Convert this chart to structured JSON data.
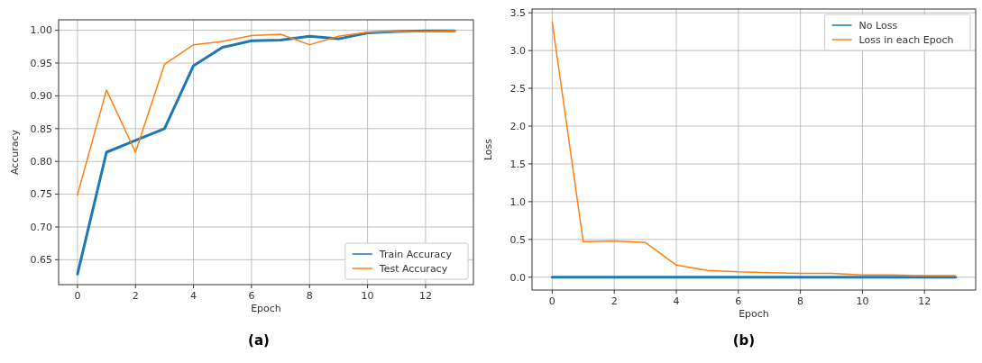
{
  "chart_data": [
    {
      "type": "line",
      "xlabel": "Epoch",
      "ylabel": "Accuracy",
      "annotations": [
        "(a)"
      ],
      "x": [
        0,
        1,
        2,
        3,
        4,
        5,
        6,
        7,
        8,
        9,
        10,
        11,
        12,
        13
      ],
      "xlim": [
        -0.65,
        13.65
      ],
      "xticks": [
        0,
        2,
        4,
        6,
        8,
        10,
        12
      ],
      "ylim": [
        0.612,
        1.016
      ],
      "yticks": [
        {
          "value": 0.65,
          "label": "0.65"
        },
        {
          "value": 0.7,
          "label": "0.70"
        },
        {
          "value": 0.75,
          "label": "0.75"
        },
        {
          "value": 0.8,
          "label": "0.80"
        },
        {
          "value": 0.85,
          "label": "0.85"
        },
        {
          "value": 0.9,
          "label": "0.90"
        },
        {
          "value": 0.95,
          "label": "0.95"
        },
        {
          "value": 1,
          "label": "1.00"
        }
      ],
      "grid": true,
      "legend": "bottom right",
      "series": [
        {
          "name": "Train Accuracy",
          "color": "#1f77b4",
          "values": [
            0.628,
            0.814,
            0.832,
            0.85,
            0.946,
            0.974,
            0.984,
            0.985,
            0.991,
            0.987,
            0.996,
            0.998,
            0.999,
            0.999
          ]
        },
        {
          "name": "Test Accuracy",
          "color": "#ff7f0e",
          "values": [
            0.749,
            0.909,
            0.814,
            0.948,
            0.978,
            0.983,
            0.992,
            0.994,
            0.978,
            0.991,
            0.997,
            0.998,
            0.998,
            0.999
          ]
        }
      ]
    },
    {
      "type": "line",
      "xlabel": "Epoch",
      "ylabel": "Loss",
      "annotations": [
        "(b)"
      ],
      "x": [
        0,
        1,
        2,
        3,
        4,
        5,
        6,
        7,
        8,
        9,
        10,
        11,
        12,
        13
      ],
      "xlim": [
        -0.65,
        13.65
      ],
      "xticks": [
        0,
        2,
        4,
        6,
        8,
        10,
        12
      ],
      "ylim": [
        -0.17,
        3.55
      ],
      "yticks": [
        {
          "value": 0,
          "label": "0.0"
        },
        {
          "value": 0.5,
          "label": "0.5"
        },
        {
          "value": 1,
          "label": "1.0"
        },
        {
          "value": 1.5,
          "label": "1.5"
        },
        {
          "value": 2,
          "label": "2.0"
        },
        {
          "value": 2.5,
          "label": "2.5"
        },
        {
          "value": 3,
          "label": "3.0"
        },
        {
          "value": 3.5,
          "label": "3.5"
        }
      ],
      "grid": true,
      "legend": "top right",
      "series": [
        {
          "name": "No Loss",
          "color": "#1f77b4",
          "values": [
            0,
            0,
            0,
            0,
            0,
            0,
            0,
            0,
            0,
            0,
            0,
            0,
            0,
            0
          ]
        },
        {
          "name": "Loss in each Epoch",
          "color": "#ff7f0e",
          "values": [
            3.38,
            0.47,
            0.48,
            0.46,
            0.16,
            0.09,
            0.07,
            0.06,
            0.05,
            0.05,
            0.03,
            0.03,
            0.02,
            0.02
          ]
        }
      ]
    }
  ]
}
